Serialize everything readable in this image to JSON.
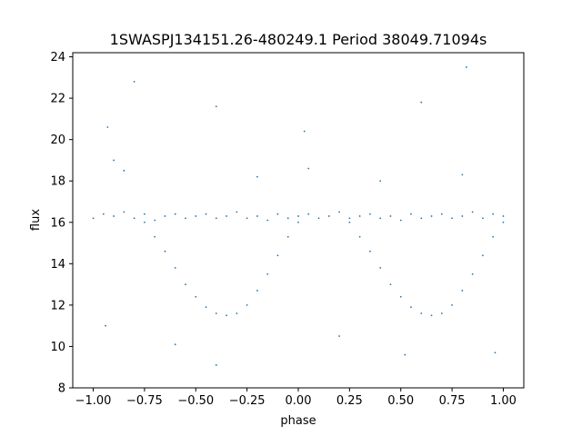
{
  "chart_data": {
    "type": "scatter",
    "title": "1SWASPJ134151.26-480249.1 Period 38049.71094s",
    "xlabel": "phase",
    "ylabel": "flux",
    "xlim": [
      -1.1,
      1.1
    ],
    "ylim": [
      8,
      24.2
    ],
    "xticks": [
      -1.0,
      -0.75,
      -0.5,
      -0.25,
      0.0,
      0.25,
      0.5,
      0.75,
      1.0
    ],
    "xtick_labels": [
      "−1.00",
      "−0.75",
      "−0.50",
      "−0.25",
      "0.00",
      "0.25",
      "0.50",
      "0.75",
      "1.00"
    ],
    "yticks": [
      8,
      10,
      12,
      14,
      16,
      18,
      20,
      22,
      24
    ],
    "ytick_labels": [
      "8",
      "10",
      "12",
      "14",
      "16",
      "18",
      "20",
      "22",
      "24"
    ],
    "grid": false,
    "color": "#1f77b4",
    "series": [
      {
        "points": [
          [
            -1.0,
            16.2
          ],
          [
            -0.95,
            16.4
          ],
          [
            -0.9,
            16.3
          ],
          [
            -0.85,
            16.5
          ],
          [
            -0.8,
            16.2
          ],
          [
            -0.75,
            16.4
          ],
          [
            -0.7,
            16.1
          ],
          [
            -0.65,
            16.3
          ],
          [
            -0.6,
            16.4
          ],
          [
            -0.55,
            16.2
          ],
          [
            -0.5,
            16.3
          ],
          [
            -0.45,
            16.4
          ],
          [
            -0.4,
            16.2
          ],
          [
            -0.35,
            16.3
          ],
          [
            -0.3,
            16.5
          ],
          [
            -0.25,
            16.2
          ],
          [
            -0.2,
            16.3
          ],
          [
            -0.15,
            16.1
          ],
          [
            -0.1,
            16.4
          ],
          [
            -0.05,
            16.2
          ],
          [
            0.0,
            16.3
          ],
          [
            0.05,
            16.4
          ],
          [
            0.1,
            16.2
          ],
          [
            0.15,
            16.3
          ],
          [
            0.2,
            16.5
          ],
          [
            0.25,
            16.2
          ],
          [
            0.3,
            16.3
          ],
          [
            0.35,
            16.4
          ],
          [
            0.4,
            16.2
          ],
          [
            0.45,
            16.3
          ],
          [
            0.5,
            16.1
          ],
          [
            0.55,
            16.4
          ],
          [
            0.6,
            16.2
          ],
          [
            0.65,
            16.3
          ],
          [
            0.7,
            16.4
          ],
          [
            0.75,
            16.2
          ],
          [
            0.8,
            16.3
          ],
          [
            0.85,
            16.5
          ],
          [
            0.9,
            16.2
          ],
          [
            0.95,
            16.4
          ],
          [
            1.0,
            16.3
          ],
          [
            -0.75,
            16.0
          ],
          [
            -0.7,
            15.3
          ],
          [
            -0.65,
            14.6
          ],
          [
            -0.6,
            13.8
          ],
          [
            -0.55,
            13.0
          ],
          [
            -0.5,
            12.4
          ],
          [
            -0.45,
            11.9
          ],
          [
            -0.4,
            11.6
          ],
          [
            -0.35,
            11.5
          ],
          [
            -0.3,
            11.6
          ],
          [
            -0.25,
            12.0
          ],
          [
            -0.2,
            12.7
          ],
          [
            -0.15,
            13.5
          ],
          [
            -0.1,
            14.4
          ],
          [
            -0.05,
            15.3
          ],
          [
            0.0,
            16.0
          ],
          [
            0.25,
            16.0
          ],
          [
            0.3,
            15.3
          ],
          [
            0.35,
            14.6
          ],
          [
            0.4,
            13.8
          ],
          [
            0.45,
            13.0
          ],
          [
            0.5,
            12.4
          ],
          [
            0.55,
            11.9
          ],
          [
            0.6,
            11.6
          ],
          [
            0.65,
            11.5
          ],
          [
            0.7,
            11.6
          ],
          [
            0.75,
            12.0
          ],
          [
            0.8,
            12.7
          ],
          [
            0.85,
            13.5
          ],
          [
            0.9,
            14.4
          ],
          [
            0.95,
            15.3
          ],
          [
            1.0,
            16.0
          ],
          [
            -0.9,
            19.0
          ],
          [
            -0.85,
            18.5
          ],
          [
            -0.2,
            18.2
          ],
          [
            0.05,
            18.6
          ],
          [
            0.4,
            18.0
          ],
          [
            0.8,
            18.3
          ],
          [
            -0.93,
            20.6
          ],
          [
            0.03,
            20.4
          ],
          [
            -0.4,
            21.6
          ],
          [
            0.6,
            21.8
          ],
          [
            0.82,
            23.5
          ],
          [
            -0.8,
            22.8
          ],
          [
            -0.6,
            10.1
          ],
          [
            0.2,
            10.5
          ],
          [
            -0.94,
            11.0
          ],
          [
            0.96,
            9.7
          ],
          [
            -0.4,
            9.1
          ],
          [
            0.52,
            9.6
          ]
        ]
      }
    ]
  }
}
